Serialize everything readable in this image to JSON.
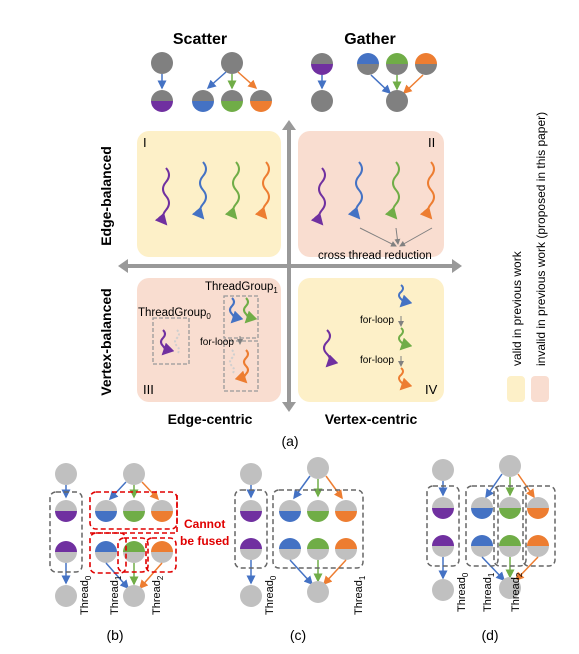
{
  "top": {
    "scatter": "Scatter",
    "gather": "Gather"
  },
  "axes": {
    "edge_balanced": "Edge-balanced",
    "vertex_balanced": "Vertex-balanced",
    "edge_centric": "Edge-centric",
    "vertex_centric": "Vertex-centric"
  },
  "quadrants": {
    "I": "I",
    "II": "II",
    "III": "III",
    "IV": "IV"
  },
  "labels": {
    "cross_thread_reduction": "cross thread reduction",
    "threadgroup0": "ThreadGroup",
    "threadgroup0_sub": "0",
    "threadgroup1": "ThreadGroup",
    "threadgroup1_sub": "1",
    "for_loop": "for-loop"
  },
  "legend": {
    "valid": "valid in previous work",
    "invalid": "invalid in previous work (proposed in this paper)"
  },
  "captions": {
    "a": "(a)",
    "b": "(b)",
    "c": "(c)",
    "d": "(d)"
  },
  "bottom": {
    "thread": "Thread",
    "sub0": "0",
    "sub1": "1",
    "sub2": "2",
    "cannot": "Cannot",
    "be_fused": "be fused"
  },
  "colors": {
    "purple": "#7030a0",
    "blue": "#4472c4",
    "green": "#70ad47",
    "orange": "#ed7d31",
    "gray": "#a6a6a6",
    "yellow_box": "#fdf0c8",
    "pink_box": "#f9ddd0",
    "red": "#e00000"
  }
}
